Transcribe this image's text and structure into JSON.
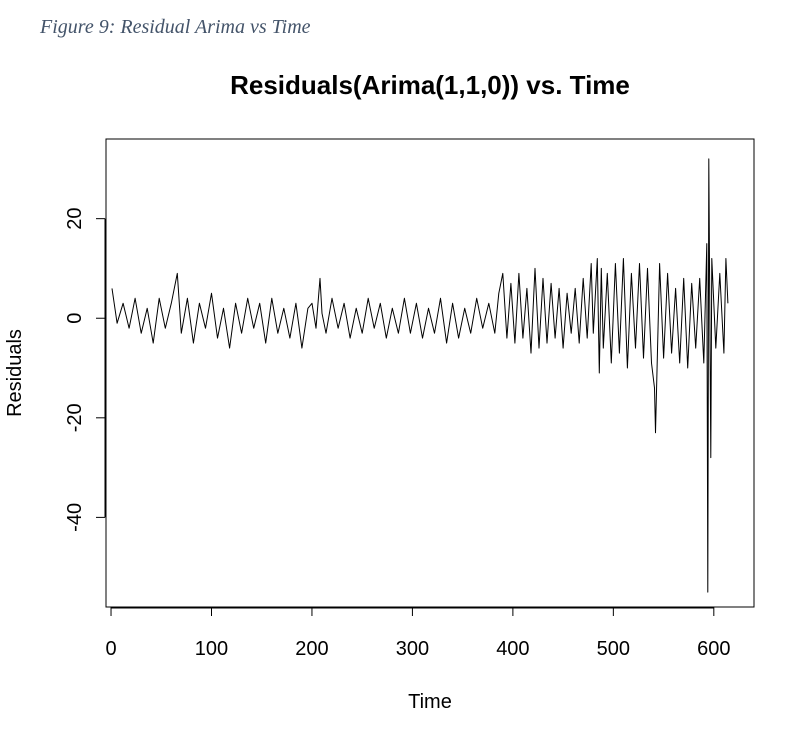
{
  "caption": "Figure 9: Residual Arima vs Time",
  "chart_data": {
    "type": "line",
    "title": "Residuals(Arima(1,1,0)) vs. Time",
    "xlabel": "Time",
    "ylabel": "Residuals",
    "xlim": [
      -5,
      640
    ],
    "ylim": [
      -58,
      36
    ],
    "xticks": [
      0,
      100,
      200,
      300,
      400,
      500,
      600
    ],
    "yticks": [
      -40,
      -20,
      0,
      20
    ],
    "xtick_labels": [
      "0",
      "100",
      "200",
      "300",
      "400",
      "500",
      "600"
    ],
    "ytick_labels": [
      "-40",
      "-20",
      "0",
      "20"
    ],
    "grid": false,
    "legend": "none",
    "color": "#000000",
    "series": [
      {
        "x": [
          1,
          6,
          12,
          18,
          24,
          30,
          36,
          42,
          48,
          54,
          60,
          64,
          66,
          70,
          76,
          82,
          88,
          94,
          100,
          106,
          112,
          118,
          124,
          130,
          136,
          142,
          148,
          154,
          160,
          166,
          172,
          178,
          184,
          190,
          196,
          200,
          204,
          208,
          210,
          214,
          220,
          226,
          232,
          238,
          244,
          250,
          256,
          262,
          268,
          274,
          280,
          286,
          292,
          298,
          304,
          310,
          316,
          322,
          328,
          334,
          340,
          346,
          352,
          358,
          364,
          370,
          376,
          382,
          386,
          390,
          394,
          398,
          402,
          406,
          410,
          414,
          418,
          422,
          426,
          430,
          434,
          438,
          442,
          446,
          450,
          454,
          458,
          462,
          466,
          470,
          474,
          478,
          480,
          484,
          486,
          488,
          490,
          494,
          498,
          502,
          506,
          510,
          514,
          518,
          522,
          526,
          530,
          534,
          538,
          541,
          542,
          546,
          550,
          554,
          558,
          562,
          566,
          570,
          574,
          578,
          582,
          586,
          590,
          593,
          594,
          595,
          597,
          598,
          602,
          606,
          610,
          612,
          614
        ],
        "values": [
          6,
          -1,
          3,
          -2,
          4,
          -3,
          2,
          -5,
          4,
          -2,
          3,
          7,
          9,
          -3,
          4,
          -5,
          3,
          -2,
          5,
          -4,
          2,
          -6,
          3,
          -3,
          4,
          -2,
          3,
          -5,
          4,
          -3,
          2,
          -4,
          3,
          -6,
          2,
          3,
          -2,
          8,
          1,
          -3,
          4,
          -2,
          3,
          -4,
          2,
          -3,
          4,
          -2,
          3,
          -4,
          2,
          -3,
          4,
          -3,
          3,
          -4,
          2,
          -3,
          4,
          -5,
          3,
          -4,
          2,
          -3,
          4,
          -2,
          3,
          -3,
          5,
          9,
          -4,
          7,
          -5,
          9,
          -4,
          6,
          -7,
          10,
          -6,
          8,
          -5,
          7,
          -4,
          6,
          -6,
          5,
          -3,
          6,
          -5,
          8,
          -4,
          11,
          -3,
          12,
          -11,
          10,
          -6,
          9,
          -9,
          11,
          -7,
          12,
          -10,
          9,
          -6,
          11,
          -8,
          10,
          -9,
          -14,
          -23,
          11,
          -8,
          9,
          -7,
          6,
          -9,
          8,
          -10,
          7,
          -6,
          8,
          -9,
          15,
          -55,
          32,
          -28,
          12,
          -6,
          9,
          -7,
          12,
          3
        ]
      }
    ]
  }
}
